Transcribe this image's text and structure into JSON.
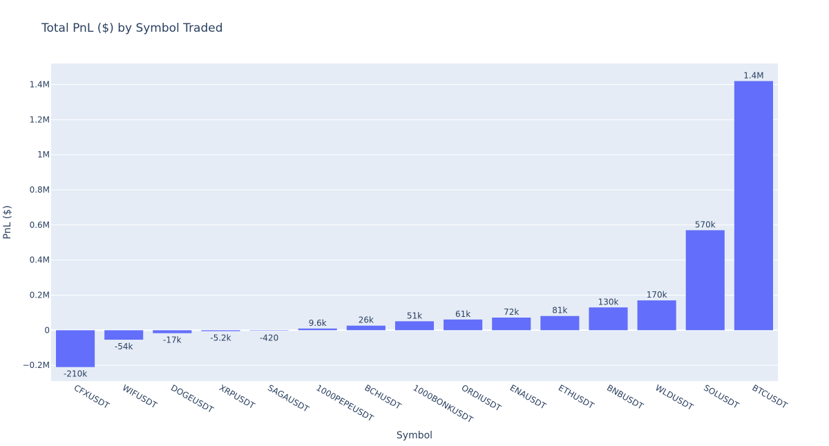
{
  "chart_data": {
    "type": "bar",
    "title": "Total PnL ($) by Symbol Traded",
    "xlabel": "Symbol",
    "ylabel": "PnL ($)",
    "ylim": [
      -290000,
      1520000
    ],
    "yticks": [
      -200000,
      0,
      200000,
      400000,
      600000,
      800000,
      1000000,
      1200000,
      1400000
    ],
    "ytick_labels": [
      "−0.2M",
      "0",
      "0.2M",
      "0.4M",
      "0.6M",
      "0.8M",
      "1M",
      "1.2M",
      "1.4M"
    ],
    "grid": true,
    "bar_color": "#636efa",
    "plot_bg": "#e5ecf6",
    "categories": [
      "CFXUSDT",
      "WIFUSDT",
      "DOGEUSDT",
      "XRPUSDT",
      "SAGAUSDT",
      "1000PEPEUSDT",
      "BCHUSDT",
      "1000BONKUSDT",
      "ORDIUSDT",
      "ENAUSDT",
      "ETHUSDT",
      "BNBUSDT",
      "WLDUSDT",
      "SOLUSDT",
      "BTCUSDT"
    ],
    "values": [
      -210000,
      -54000,
      -17000,
      -5200,
      -420,
      9600,
      26000,
      51000,
      61000,
      72000,
      81000,
      130000,
      170000,
      570000,
      1420000
    ],
    "data_labels": [
      "-210k",
      "-54k",
      "-17k",
      "-5.2k",
      "-420",
      "9.6k",
      "26k",
      "51k",
      "61k",
      "72k",
      "81k",
      "130k",
      "170k",
      "570k",
      "1.4M"
    ]
  }
}
